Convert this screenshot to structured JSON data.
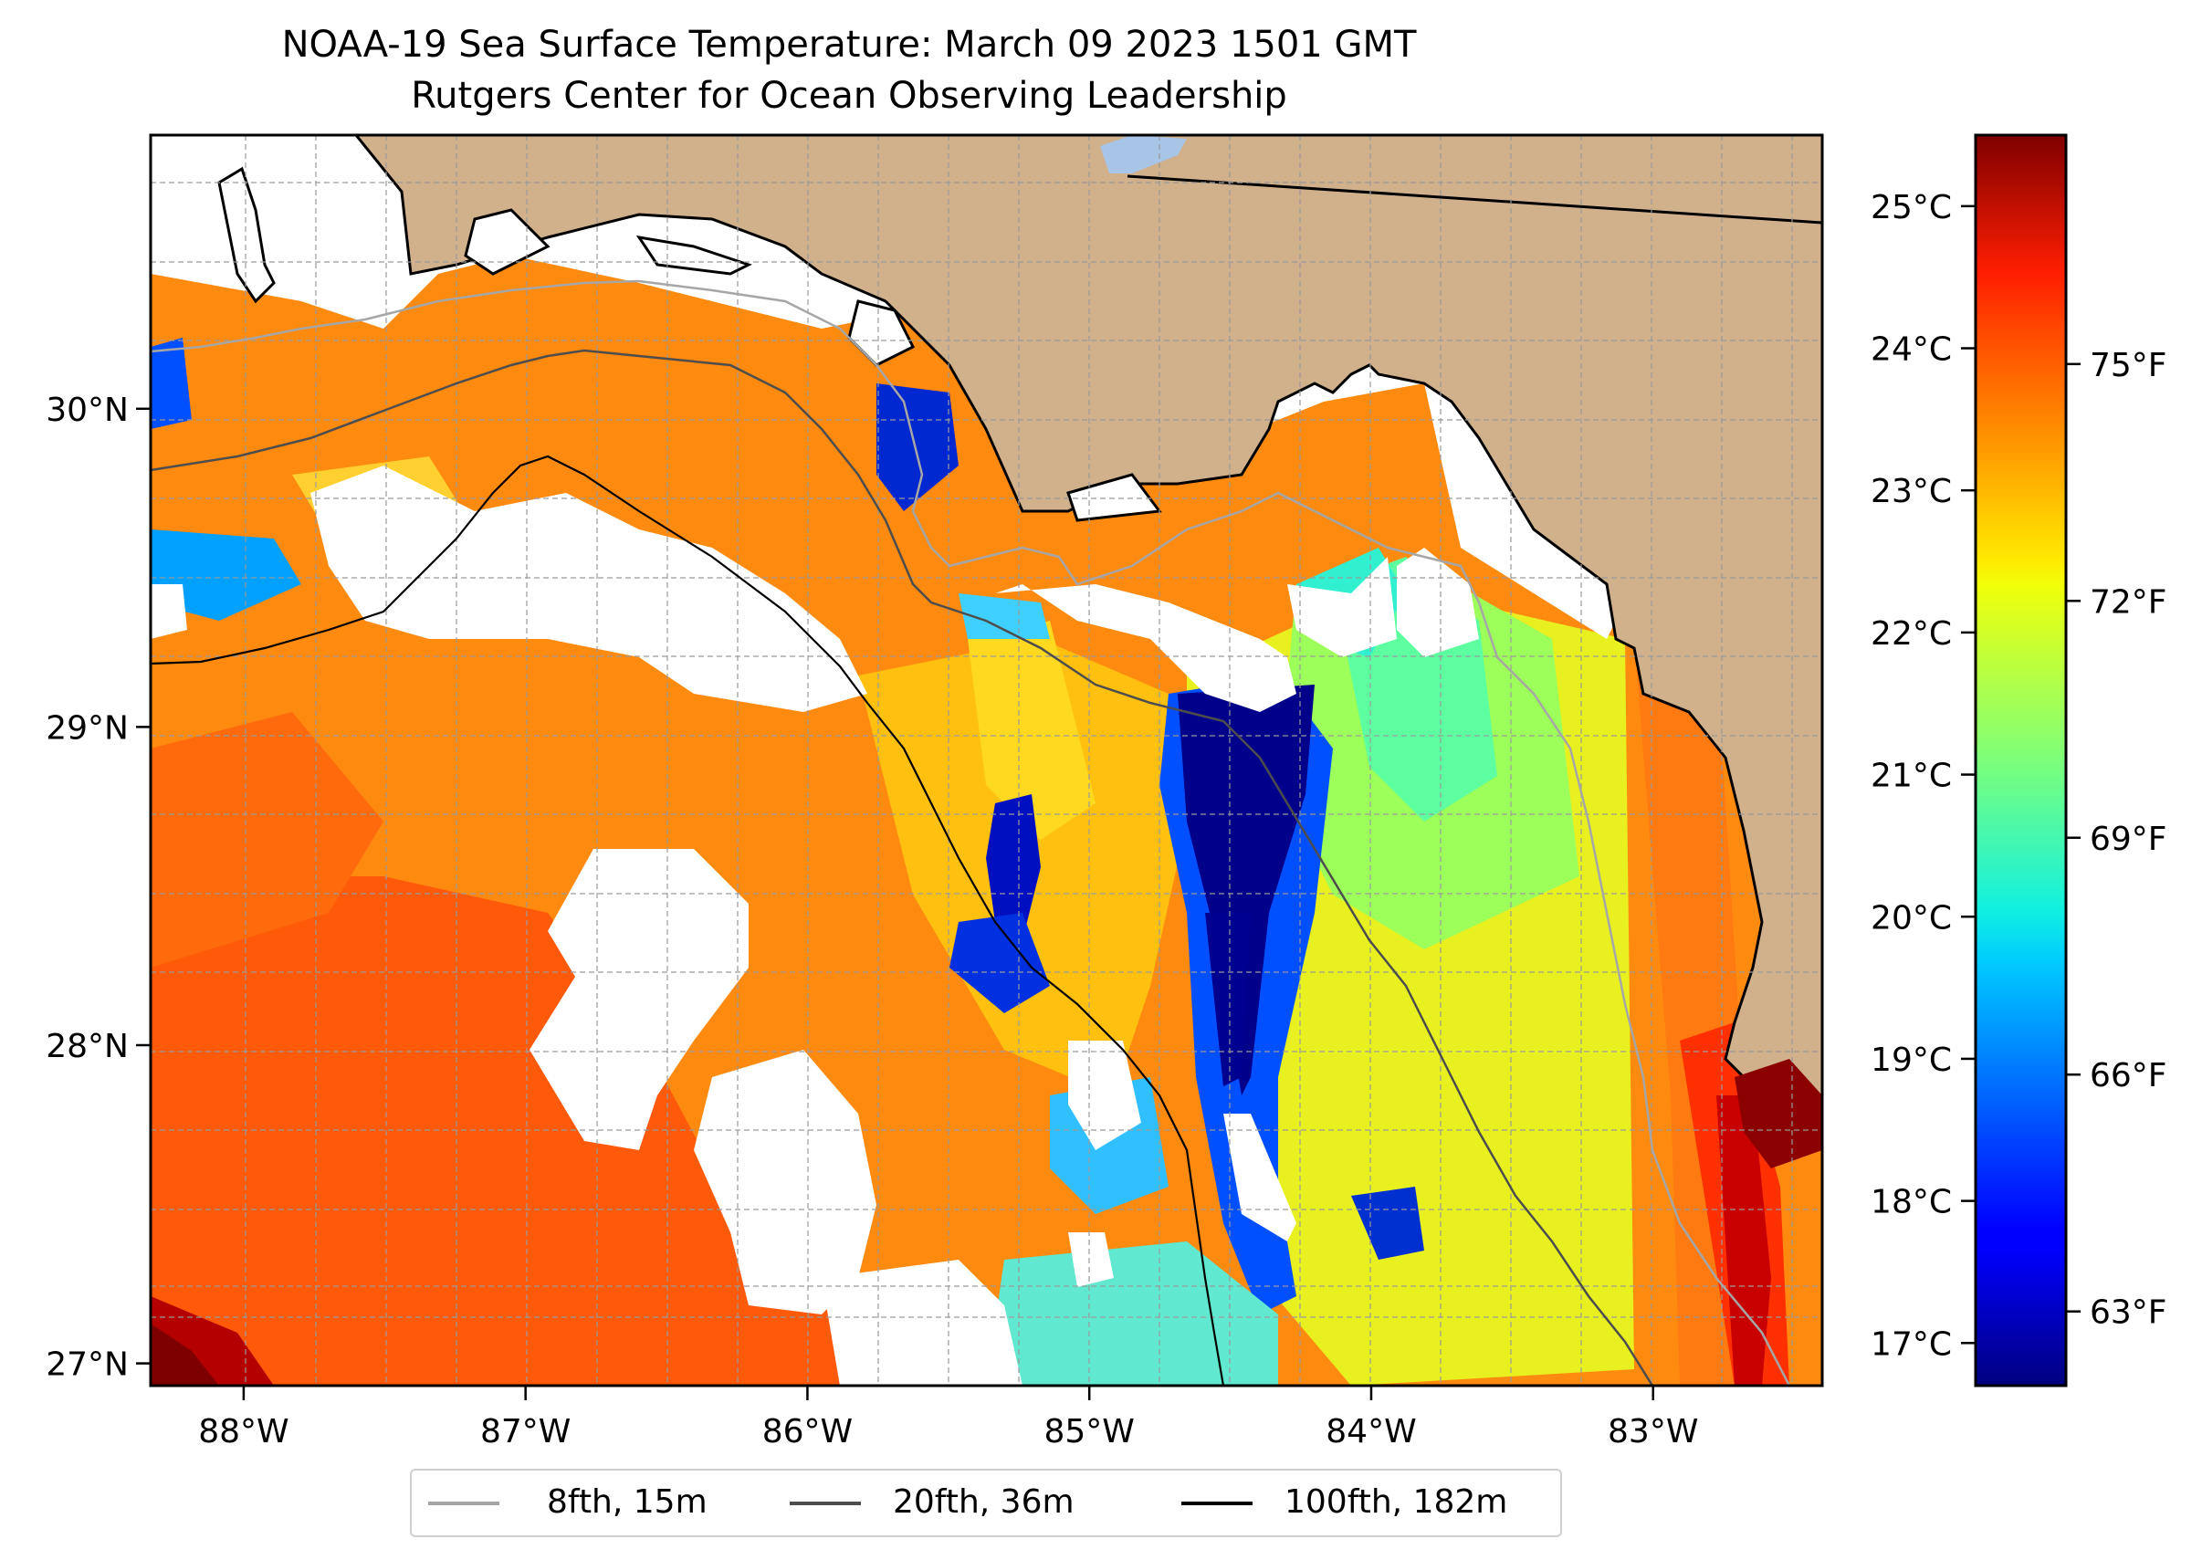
{
  "title": {
    "line1": "NOAA-19 Sea Surface Temperature: March 09 2023 1501 GMT",
    "line2": "Rutgers Center for Ocean Observing Leadership"
  },
  "map": {
    "extent": {
      "lon_min": -88.33,
      "lon_max": -82.4,
      "lat_min": 26.93,
      "lat_max": 30.86
    },
    "longitude_ticks": [
      {
        "value": -88,
        "label": "88°W"
      },
      {
        "value": -87,
        "label": "87°W"
      },
      {
        "value": -86,
        "label": "86°W"
      },
      {
        "value": -85,
        "label": "85°W"
      },
      {
        "value": -84,
        "label": "84°W"
      },
      {
        "value": -83,
        "label": "83°W"
      }
    ],
    "latitude_ticks": [
      {
        "value": 27,
        "label": "27°N"
      },
      {
        "value": 28,
        "label": "28°N"
      },
      {
        "value": 29,
        "label": "29°N"
      },
      {
        "value": 30,
        "label": "30°N"
      }
    ],
    "gridlines": true,
    "land_color": "#d0b18c",
    "no_data_color": "#ffffff"
  },
  "colorbar": {
    "colormap": "jet",
    "range_c": [
      16.7,
      25.5
    ],
    "celsius_ticks": [
      {
        "value": 17,
        "label": "17°C"
      },
      {
        "value": 18,
        "label": "18°C"
      },
      {
        "value": 19,
        "label": "19°C"
      },
      {
        "value": 20,
        "label": "20°C"
      },
      {
        "value": 21,
        "label": "21°C"
      },
      {
        "value": 22,
        "label": "22°C"
      },
      {
        "value": 23,
        "label": "23°C"
      },
      {
        "value": 24,
        "label": "24°C"
      },
      {
        "value": 25,
        "label": "25°C"
      }
    ],
    "fahrenheit_ticks": [
      {
        "value": 63,
        "label": "63°F"
      },
      {
        "value": 66,
        "label": "66°F"
      },
      {
        "value": 69,
        "label": "69°F"
      },
      {
        "value": 72,
        "label": "72°F"
      },
      {
        "value": 75,
        "label": "75°F"
      }
    ]
  },
  "legend": {
    "items": [
      {
        "label": "8fth, 15m",
        "color": "#a6a6a6"
      },
      {
        "label": "20fth, 36m",
        "color": "#4d4d4d"
      },
      {
        "label": "100fth, 182m",
        "color": "#000000"
      }
    ]
  }
}
